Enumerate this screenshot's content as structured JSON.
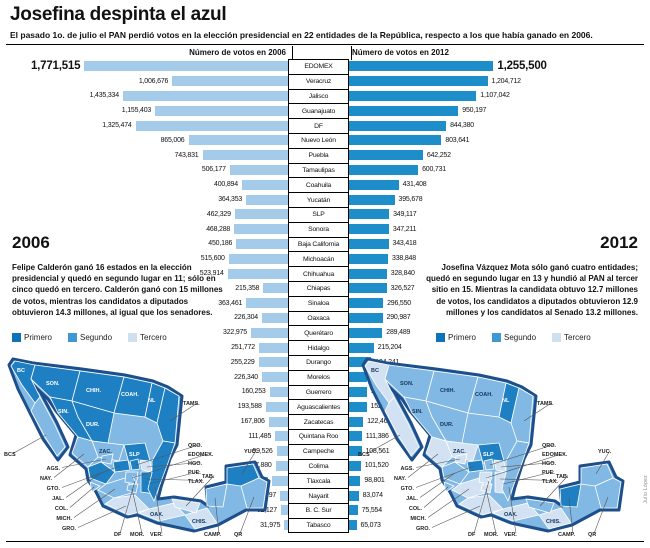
{
  "title": "Josefina despinta el azul",
  "subtitle": "El pasado 1o. de julio el PAN perdió votos en la elección presidencial en 22 entidades de la República, respecto a los que había ganado en 2006.",
  "chart_data": {
    "type": "bar",
    "orientation": "horizontal-mirrored",
    "title": "Josefina despinta el azul",
    "left_header": "Número de votos en 2006",
    "right_header": "Número de votos en 2012",
    "categories": [
      "EDOMEX",
      "Veracruz",
      "Jalisco",
      "Guanajuato",
      "DF",
      "Nuevo León",
      "Puebla",
      "Tamaulipas",
      "Coahuila",
      "Yucatán",
      "SLP",
      "Sonora",
      "Baja California",
      "Michoacán",
      "Chihuahua",
      "Chiapas",
      "Sinaloa",
      "Oaxaca",
      "Querétaro",
      "Hidalgo",
      "Durango",
      "Morelos",
      "Guerrero",
      "Aguascalientes",
      "Zacatecas",
      "Quintana Roo",
      "Campeche",
      "Colima",
      "Tlaxcala",
      "Nayarit",
      "B. C. Sur",
      "Tabasco"
    ],
    "series": [
      {
        "name": "2006",
        "values": [
          1771515,
          1006676,
          1435334,
          1155403,
          1325474,
          865006,
          743831,
          506177,
          400894,
          364353,
          462329,
          468288,
          450186,
          515600,
          523914,
          215358,
          363461,
          226304,
          322975,
          251772,
          255229,
          226340,
          160253,
          193588,
          167806,
          111485,
          99526,
          107880,
          140128,
          69097,
          62127,
          31975
        ]
      },
      {
        "name": "2012",
        "values": [
          1255500,
          1204712,
          1107042,
          950197,
          844380,
          803641,
          642252,
          600731,
          431408,
          395678,
          349117,
          347211,
          343418,
          338848,
          328840,
          326527,
          296550,
          290987,
          289489,
          215204,
          194241,
          157674,
          154018,
          152548,
          122465,
          111386,
          108561,
          101520,
          98801,
          83074,
          75554,
          65073
        ]
      }
    ]
  },
  "panel_2006": {
    "year": "2006",
    "text": "Felipe Calderón ganó 16 estados en la elección presidencial y quedó en segundo lugar en 11; sólo en cinco quedó en tercero. Calderón ganó con 15 millones de votos, mientras los candidatos a diputados obtuvieron 14.3 millones, al igual que los senadores."
  },
  "panel_2012": {
    "year": "2012",
    "text": "Josefina Vázquez Mota sólo ganó cuatro entidades; quedó en segundo lugar en 13 y hundió al PAN al tercer sitio en 15. Mientras la candidata obtuvo 12.7 millones de votos, los candidatos a diputados obtuvieron 12.9 millones y los candidatos al Senado 13.2 millones."
  },
  "legend": {
    "items": [
      {
        "label": "Primero",
        "color": "#0d72b9"
      },
      {
        "label": "Segundo",
        "color": "#3f97d4"
      },
      {
        "label": "Tercero",
        "color": "#cfe0f1"
      }
    ]
  },
  "colors": {
    "bar_2006": "#a5cbea",
    "bar_2012": "#1e8ecb",
    "map_primero": "#1e7fc2",
    "map_segundo": "#82b8e4",
    "map_tercero": "#d3e2f2",
    "map_outline": "#1d4f8c"
  },
  "maps": {
    "labels": {
      "BC": "BC",
      "BCS": "BCS",
      "SON": "SON.",
      "CHIH": "CHIH.",
      "COAH": "COAH.",
      "NL": "NL",
      "TAMS": "TAMS.",
      "SIN": "SIN.",
      "DUR": "DUR.",
      "ZAC": "ZAC.",
      "SLP": "SLP",
      "NAY": "NAY.",
      "AGS": "AGS.",
      "GTO": "GTO.",
      "QRO": "QRO.",
      "HGO": "HGO.",
      "JAL": "JAL.",
      "COL": "COL.",
      "MICH": "MICH.",
      "EDOMEX": "EDOMEX.",
      "DF": "DF",
      "MOR": "MOR.",
      "TLAX": "TLAX.",
      "PUE": "PUE.",
      "VER": "VER.",
      "GRO": "GRO.",
      "OAX": "OAX.",
      "CHIS": "CHIS.",
      "TAB": "TAB.",
      "CAMP": "CAMP.",
      "YUC": "YUC.",
      "QR": "QR"
    },
    "map_2006": {
      "categories": {
        "BC": "primero",
        "SON": "primero",
        "CHIH": "primero",
        "COAH": "primero",
        "NL": "primero",
        "TAMS": "primero",
        "SIN": "primero",
        "DUR": "primero",
        "SLP": "primero",
        "GTO": "primero",
        "JAL": "primero",
        "QRO": "primero",
        "PUE": "primero",
        "TLAX": "primero",
        "VER": "primero",
        "YUC": "primero",
        "BCS": "segundo",
        "ZAC": "segundo",
        "AGS": "segundo",
        "NAY": "segundo",
        "COL": "segundo",
        "MICH": "segundo",
        "EDOMEX": "segundo",
        "DF": "segundo",
        "MOR": "segundo",
        "CAMP": "segundo",
        "QR": "segundo",
        "HGO": "tercero",
        "GRO": "tercero",
        "OAX": "tercero",
        "CHIS": "tercero",
        "TAB": "tercero"
      }
    },
    "map_2012": {
      "categories": {
        "NL": "primero",
        "SLP": "primero",
        "GTO": "primero",
        "CAMP": "primero",
        "SON": "segundo",
        "CHIH": "segundo",
        "COAH": "segundo",
        "SIN": "segundo",
        "DUR": "segundo",
        "TAMS": "segundo",
        "QRO": "segundo",
        "YUC": "segundo",
        "QR": "segundo",
        "TAB": "segundo",
        "VER": "segundo",
        "JAL": "segundo",
        "COL": "segundo",
        "BC": "tercero",
        "BCS": "tercero",
        "ZAC": "tercero",
        "AGS": "tercero",
        "NAY": "tercero",
        "MICH": "tercero",
        "GRO": "tercero",
        "OAX": "tercero",
        "CHIS": "tercero",
        "PUE": "tercero",
        "TLAX": "tercero",
        "EDOMEX": "tercero",
        "DF": "tercero",
        "MOR": "tercero",
        "HGO": "tercero"
      }
    }
  },
  "credit": "Julio López"
}
